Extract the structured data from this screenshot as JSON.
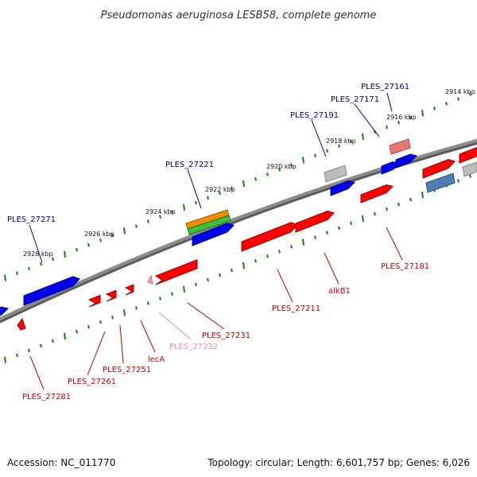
{
  "title": "Pseudomonas aeruginosa LESB58, complete genome",
  "footer": {
    "accession": "Accession: NC_011770",
    "summary": "Topology: circular; Length: 6,601,757 bp; Genes: 6,026"
  },
  "colors": {
    "backbone": "#808080",
    "tick": "#1a7a1a",
    "gene_red": "#ff0000",
    "gene_blue": "#0000ee",
    "gene_grey": "#bdbdbd",
    "gene_pink": "#f4a0c0",
    "gene_salmon": "#e87878",
    "gene_steel": "#4f7fb0",
    "gene_orange": "#f08c00",
    "gene_green": "#3cbf3c",
    "label_blue": "#00008b",
    "label_red": "#cc0000",
    "label_pink": "#f08cb4"
  },
  "ticks": {
    "outer_labels": [
      "2914 kbp",
      "2916 kbp",
      "2918 kbp",
      "2920 kbp",
      "2922 kbp",
      "2924 kbp",
      "2926 kbp",
      "2928 kbp"
    ]
  },
  "genes": {
    "outer": [
      "PLES_27161",
      "PLES_27171",
      "PLES_27191",
      "PLES_27221",
      "PLES_27271"
    ],
    "inner": [
      "PLES_27181",
      "alkB1",
      "PLES_27211",
      "PLES_27231",
      "PLES_27232",
      "lecA",
      "PLES_27251",
      "PLES_27261",
      "PLES_27281"
    ]
  }
}
